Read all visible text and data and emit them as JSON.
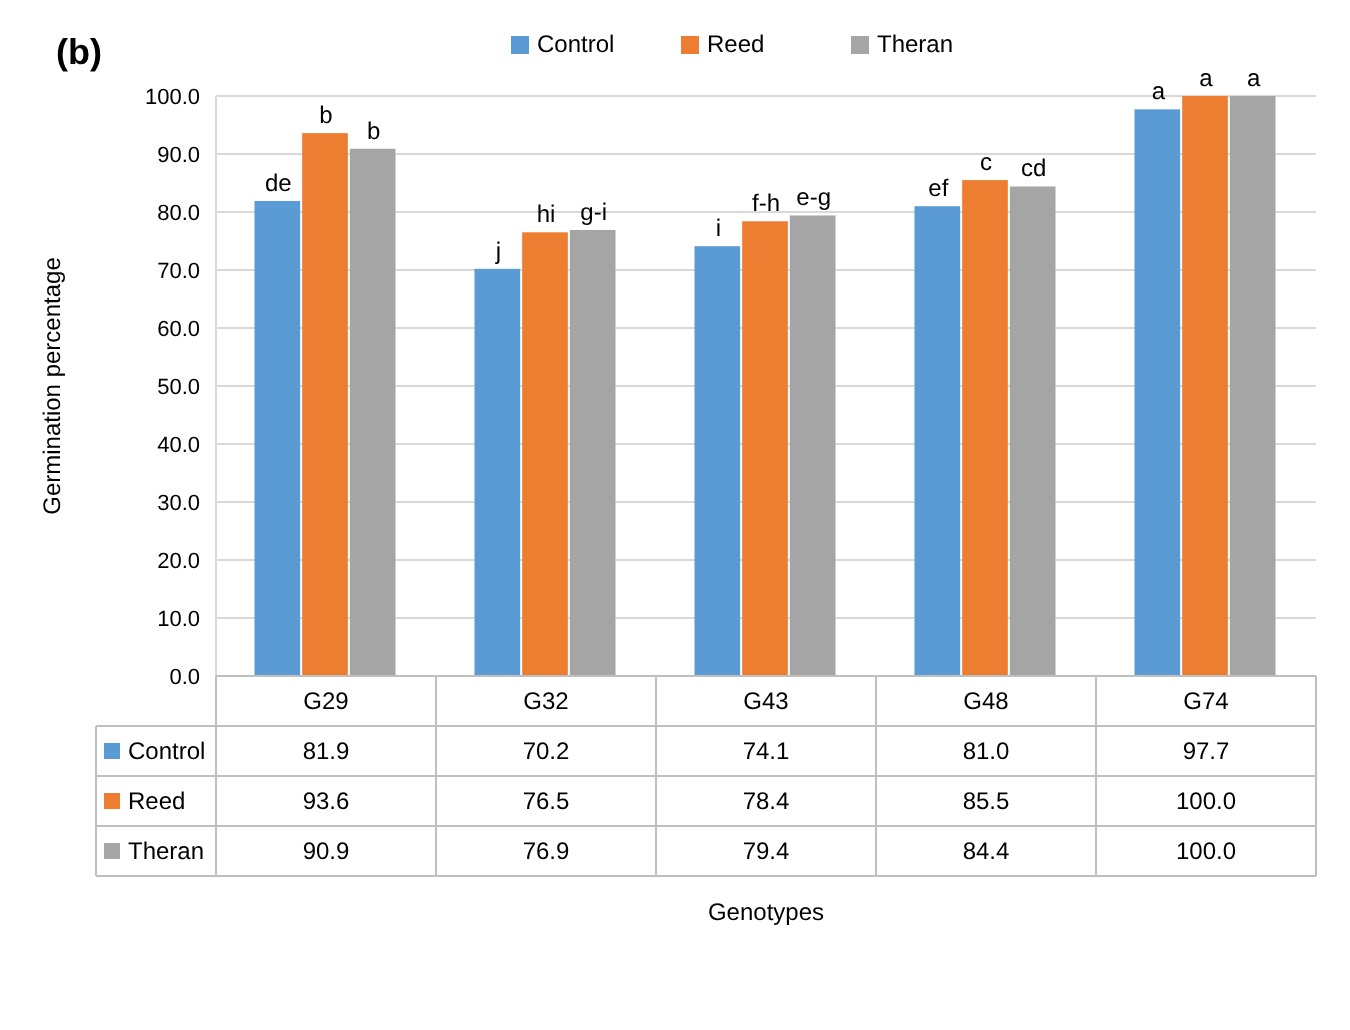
{
  "chart_data": {
    "type": "bar",
    "title": "(b)",
    "ylabel": "Germination percentage",
    "categories": [
      "G29",
      "G32",
      "G43",
      "G48",
      "G74"
    ],
    "series": [
      {
        "name": "Control",
        "color": "#5b9bd5",
        "values": [
          81.9,
          70.2,
          74.1,
          81.0,
          97.7
        ],
        "value_labels": [
          "81.9",
          "70.2",
          "74.1",
          "81.0",
          "97.7"
        ]
      },
      {
        "name": "Reed",
        "color": "#ed7d31",
        "values": [
          93.6,
          76.5,
          78.4,
          85.5,
          100.0
        ],
        "value_labels": [
          "93.6",
          "76.5",
          "78.4",
          "85.5",
          "100.0"
        ]
      },
      {
        "name": "Theran",
        "color": "#a5a5a5",
        "values": [
          90.9,
          76.9,
          79.4,
          84.4,
          100.0
        ],
        "value_labels": [
          "90.9",
          "76.9",
          "79.4",
          "84.4",
          "100.0"
        ]
      }
    ],
    "ylim": [
      0,
      100
    ],
    "yticks": [
      {
        "value": 0,
        "label": "0.0"
      },
      {
        "value": 10,
        "label": "10.0"
      },
      {
        "value": 20,
        "label": "20.0"
      },
      {
        "value": 30,
        "label": "30.0"
      },
      {
        "value": 40,
        "label": "40.0"
      },
      {
        "value": 50,
        "label": "50.0"
      },
      {
        "value": 60,
        "label": "60.0"
      },
      {
        "value": 70,
        "label": "70.0"
      },
      {
        "value": 80,
        "label": "80.0"
      },
      {
        "value": 90,
        "label": "90.0"
      },
      {
        "value": 100,
        "label": "100.0"
      }
    ],
    "grid": "y",
    "legend": "top",
    "annotations": [
      "de",
      "b",
      "b",
      "j",
      "hi",
      "g-i",
      "i",
      "f-h",
      "e-g",
      "ef",
      "c",
      "cd",
      "a",
      "a",
      "a",
      "Genotypes"
    ]
  }
}
